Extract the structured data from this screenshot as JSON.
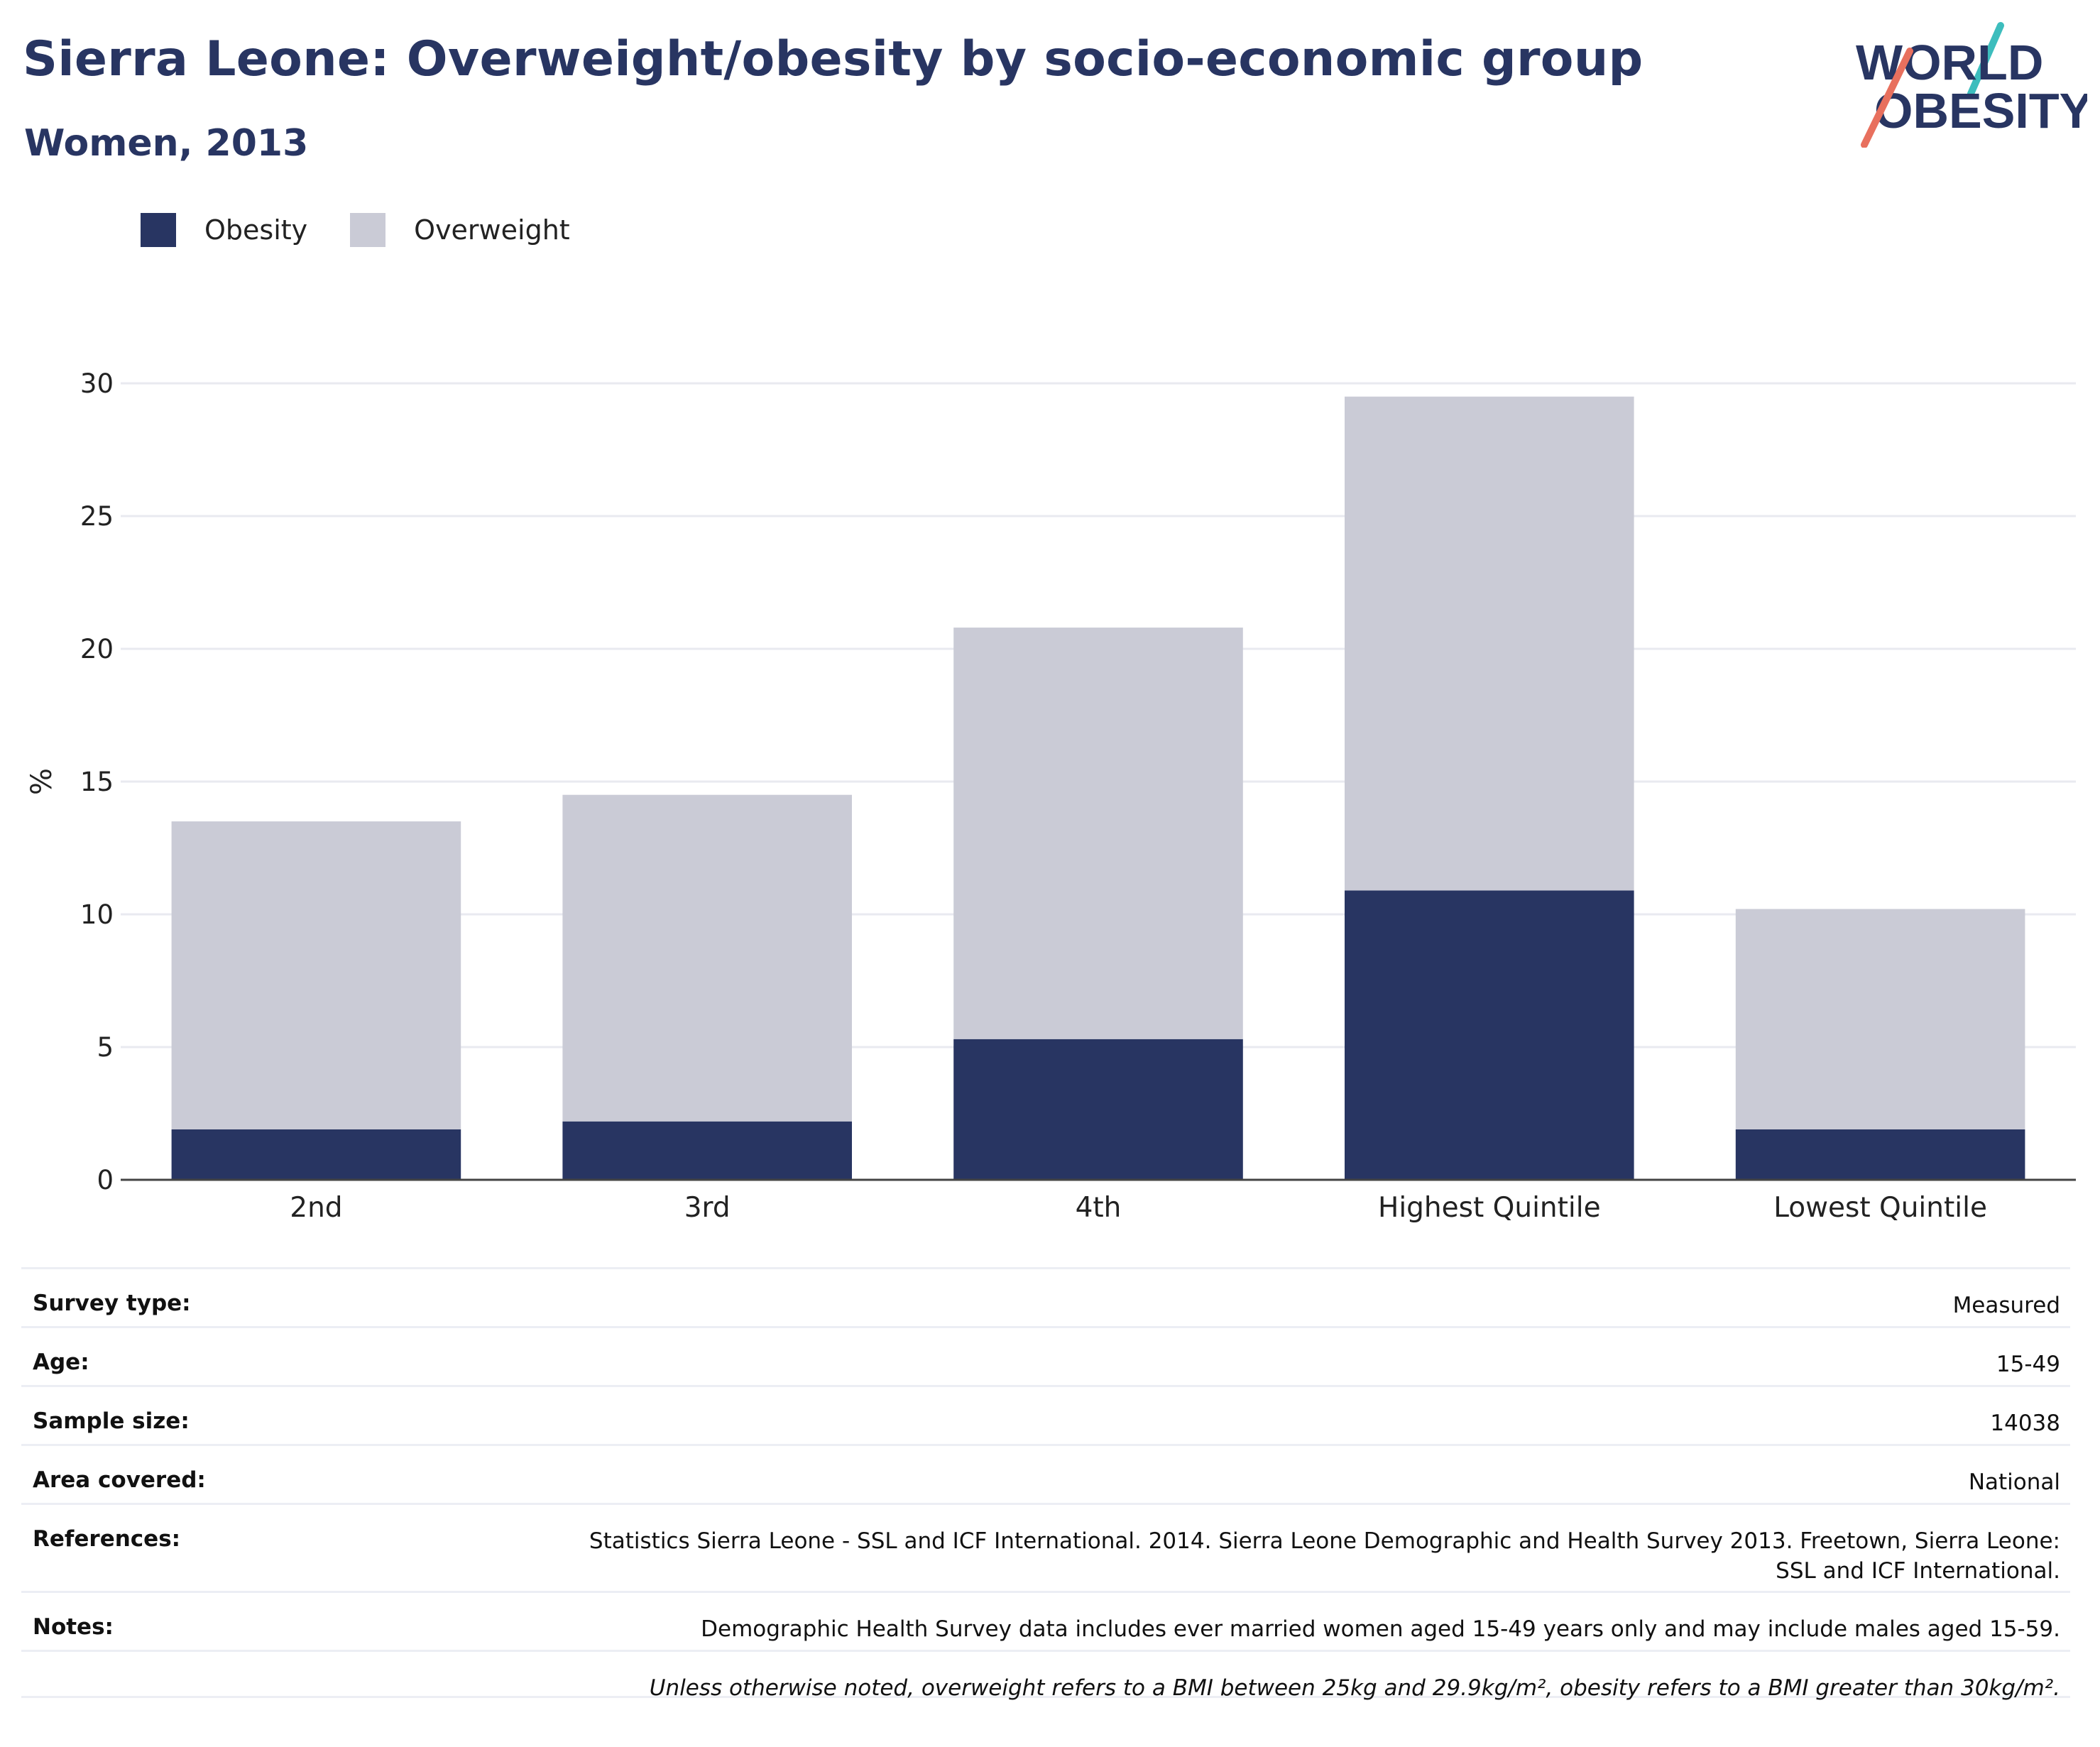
{
  "title": "Sierra Leone: Overweight/obesity by socio-economic group",
  "subtitle": "Women, 2013",
  "logo": {
    "line1": "WORLD",
    "line2": "OBESITY"
  },
  "colors": {
    "obesity": "#283562",
    "overweight": "#cacbd6",
    "text_dark": "#283562",
    "logo_teal": "#3dbdbd",
    "logo_coral": "#e8705e"
  },
  "legend": [
    {
      "label": "Obesity",
      "color": "#283562"
    },
    {
      "label": "Overweight",
      "color": "#cacbd6"
    }
  ],
  "chart_data": {
    "type": "bar",
    "stacked": true,
    "categories": [
      "2nd",
      "3rd",
      "4th",
      "Highest Quintile",
      "Lowest Quintile"
    ],
    "series": [
      {
        "name": "Obesity",
        "values": [
          1.9,
          2.2,
          5.3,
          10.9,
          1.9
        ]
      },
      {
        "name": "Overweight",
        "values": [
          11.6,
          12.3,
          15.5,
          18.6,
          8.3
        ]
      }
    ],
    "ylabel": "%",
    "ylim": [
      0,
      30
    ],
    "yticks": [
      0,
      5,
      10,
      15,
      20,
      25,
      30
    ],
    "grid": true,
    "legend_position": "top-left"
  },
  "info": [
    {
      "key": "Survey type:",
      "value": "Measured"
    },
    {
      "key": "Age:",
      "value": "15-49"
    },
    {
      "key": "Sample size:",
      "value": "14038"
    },
    {
      "key": "Area covered:",
      "value": "National"
    },
    {
      "key": "References:",
      "value_lines": [
        "Statistics Sierra Leone - SSL and ICF International. 2014. Sierra Leone Demographic and Health Survey 2013. Freetown, Sierra Leone:",
        "SSL and ICF International."
      ]
    },
    {
      "key": "Notes:",
      "value": "Demographic Health Survey data includes ever married women aged 15-49 years only and may include males aged 15-59."
    },
    {
      "key": "",
      "value": "Unless otherwise noted, overweight refers to a BMI between 25kg and 29.9kg/m², obesity refers to a BMI greater than 30kg/m²."
    }
  ]
}
